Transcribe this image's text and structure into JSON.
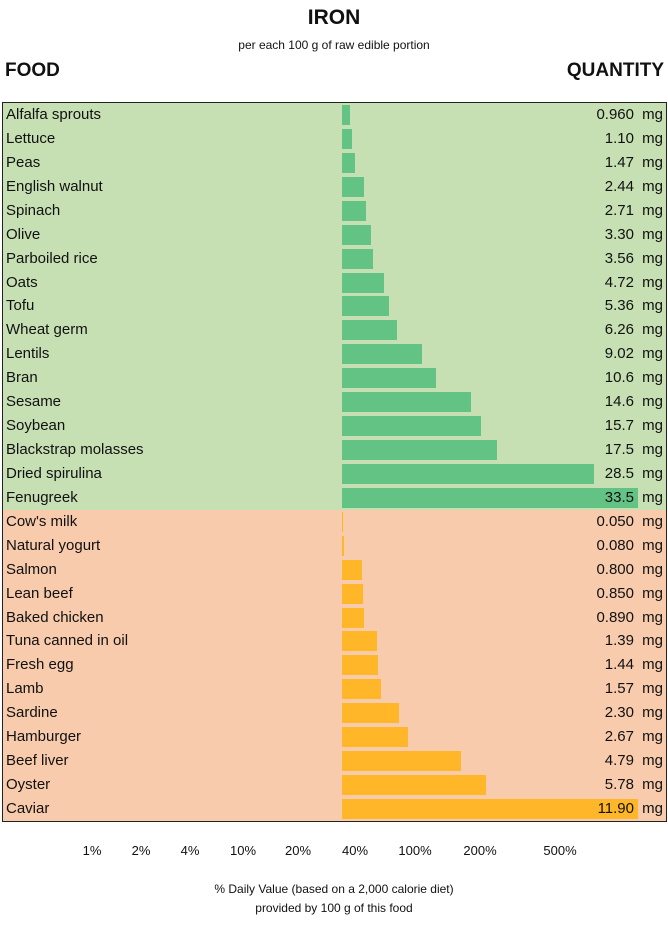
{
  "chart_data": {
    "type": "bar",
    "title": "IRON",
    "subtitle": "per each 100 g of raw edible portion",
    "col_left": "FOOD",
    "col_right": "QUANTITY",
    "unit": "mg",
    "xlabel": "% Daily Value (based on a 2,000 calorie diet)",
    "xlabel2": "provided by 100 g of this food",
    "x_ticks": [
      "1%",
      "2%",
      "4%",
      "10%",
      "20%",
      "40%",
      "100%",
      "200%",
      "500%"
    ],
    "colors": {
      "plant_bg": "#c6e0b4",
      "plant_bar": "#63c384",
      "animal_bg": "#f8cbad",
      "animal_bar": "#ffb628"
    },
    "groups": [
      {
        "kind": "plant",
        "categories": [
          "Alfalfa sprouts",
          "Lettuce",
          "Peas",
          "English walnut",
          "Spinach",
          "Olive",
          "Parboiled rice",
          "Oats",
          "Tofu",
          "Wheat germ",
          "Lentils",
          "Bran",
          "Sesame",
          "Soybean",
          "Blackstrap molasses",
          "Dried spirulina",
          "Fenugreek"
        ],
        "values": [
          0.96,
          1.1,
          1.47,
          2.44,
          2.71,
          3.3,
          3.56,
          4.72,
          5.36,
          6.26,
          9.02,
          10.6,
          14.6,
          15.7,
          17.5,
          28.5,
          33.5
        ],
        "labels": [
          "0.960",
          "1.10",
          "1.47",
          "2.44",
          "2.71",
          "3.30",
          "3.56",
          "4.72",
          "5.36",
          "6.26",
          "9.02",
          "10.6",
          "14.6",
          "15.7",
          "17.5",
          "28.5",
          "33.5"
        ]
      },
      {
        "kind": "animal",
        "categories": [
          "Cow's milk",
          "Natural yogurt",
          "Salmon",
          "Lean beef",
          "Baked chicken",
          "Tuna canned in oil",
          "Fresh egg",
          "Lamb",
          "Sardine",
          "Hamburger",
          "Beef liver",
          "Oyster",
          "Caviar"
        ],
        "values": [
          0.05,
          0.08,
          0.8,
          0.85,
          0.89,
          1.39,
          1.44,
          1.57,
          2.3,
          2.67,
          4.79,
          5.78,
          11.9
        ],
        "labels": [
          "0.050",
          "0.080",
          "0.800",
          "0.850",
          "0.890",
          "1.39",
          "1.44",
          "1.57",
          "2.30",
          "2.67",
          "4.79",
          "5.78",
          "11.90"
        ]
      }
    ]
  }
}
